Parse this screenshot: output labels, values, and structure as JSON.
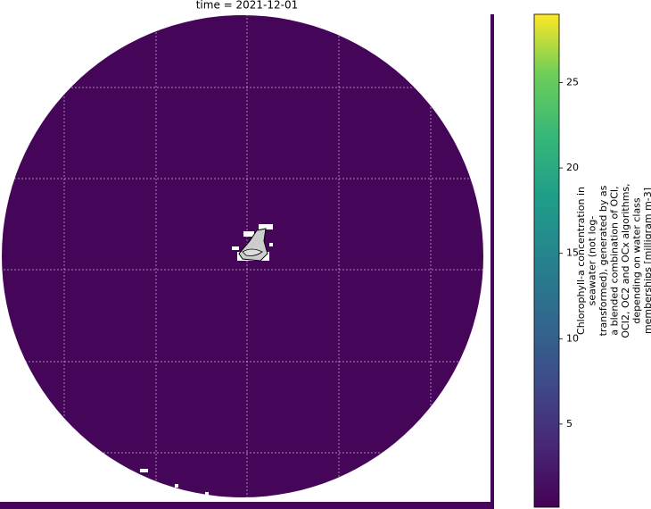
{
  "map": {
    "title": "time = 2021-12-01",
    "colorbar": {
      "label_lines": [
        "Chlorophyll-a concentration in",
        "seawater (not log-",
        "transformed), generated by as",
        "a blended combination of OCI,",
        "OCI2, OC2 and OCx algorithms,",
        "depending on water class",
        "memberships [milligram m-3]"
      ],
      "lim": [
        0.13,
        29.0
      ],
      "ticks": [
        5,
        10,
        15,
        20,
        25
      ],
      "colormap": "viridis"
    }
  }
}
